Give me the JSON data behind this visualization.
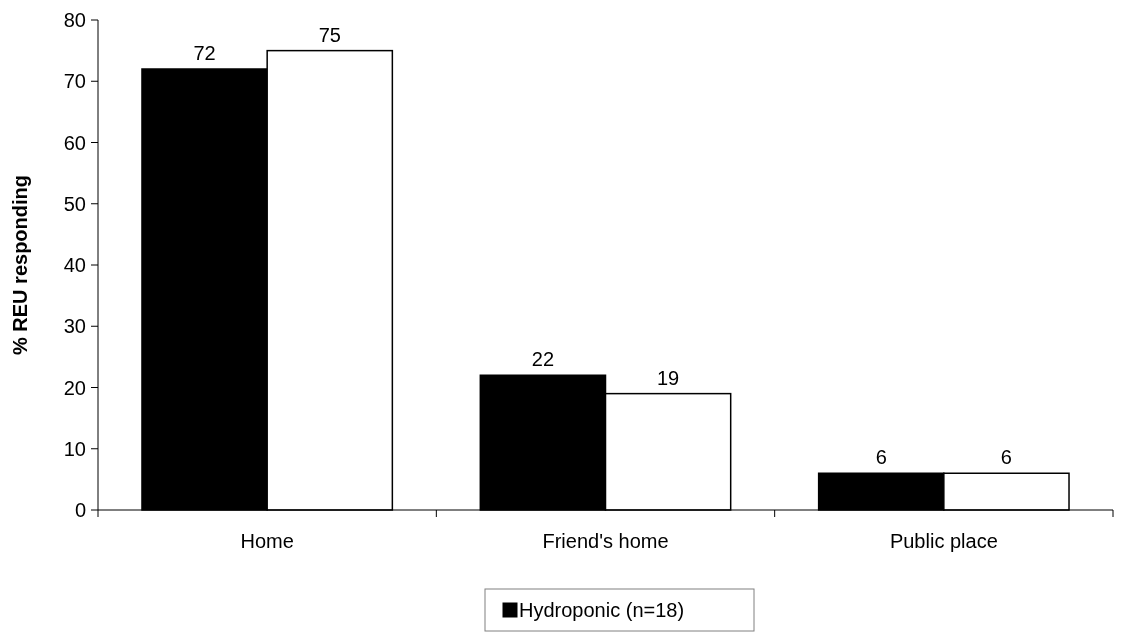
{
  "chart_data": {
    "type": "bar",
    "ylabel": "% REU responding",
    "categories": [
      "Home",
      "Friend's home",
      "Public place"
    ],
    "series": [
      {
        "name": "Hydroponic (n=18)",
        "color": "#000000",
        "values": [
          72,
          22,
          6
        ]
      },
      {
        "color": "#ffffff",
        "values": [
          75,
          19,
          6
        ]
      }
    ],
    "ylim": [
      0,
      80
    ],
    "yticks": [
      0,
      10,
      20,
      30,
      40,
      50,
      60,
      70,
      80
    ],
    "data_labels": true,
    "legend": "bottom",
    "grid": false
  }
}
